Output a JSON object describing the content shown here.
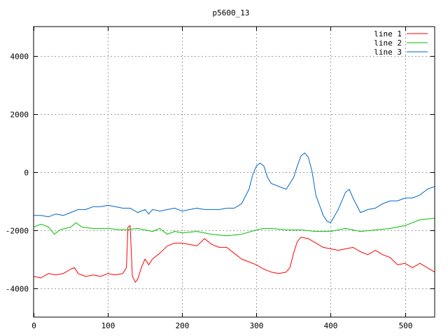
{
  "chart_data": {
    "type": "line",
    "title": "p5600_13",
    "xlabel": "",
    "ylabel": "",
    "xlim": [
      0,
      540
    ],
    "ylim": [
      -5000,
      5000
    ],
    "x_ticks": [
      0,
      100,
      200,
      300,
      400,
      500
    ],
    "y_ticks": [
      -4000,
      -2000,
      0,
      2000,
      4000
    ],
    "grid": true,
    "legend_position": "top-right",
    "series": [
      {
        "name": "line 1",
        "color": "#ff0000",
        "x": [
          0,
          10,
          20,
          30,
          40,
          50,
          55,
          60,
          70,
          80,
          90,
          100,
          110,
          120,
          125,
          127,
          130,
          133,
          137,
          140,
          145,
          150,
          155,
          160,
          170,
          180,
          190,
          200,
          210,
          220,
          230,
          240,
          250,
          260,
          270,
          280,
          290,
          300,
          310,
          320,
          330,
          340,
          345,
          350,
          355,
          360,
          370,
          380,
          390,
          400,
          410,
          420,
          430,
          440,
          450,
          460,
          470,
          480,
          490,
          500,
          510,
          520,
          530,
          540
        ],
        "y": [
          -3600,
          -3650,
          -3500,
          -3550,
          -3500,
          -3350,
          -3300,
          -3500,
          -3600,
          -3550,
          -3600,
          -3500,
          -3550,
          -3500,
          -3300,
          -1900,
          -1850,
          -3600,
          -3800,
          -3700,
          -3300,
          -3000,
          -3200,
          -3000,
          -2800,
          -2550,
          -2450,
          -2450,
          -2500,
          -2550,
          -2300,
          -2500,
          -2600,
          -2600,
          -2800,
          -3000,
          -3100,
          -3200,
          -3350,
          -3450,
          -3500,
          -3450,
          -3300,
          -2800,
          -2400,
          -2250,
          -2300,
          -2450,
          -2600,
          -2650,
          -2700,
          -2650,
          -2600,
          -2750,
          -2850,
          -2700,
          -2850,
          -2950,
          -3200,
          -3150,
          -3300,
          -3150,
          -3300,
          -3450
        ]
      },
      {
        "name": "line 2",
        "color": "#00c000",
        "x": [
          0,
          10,
          20,
          28,
          35,
          50,
          57,
          65,
          80,
          100,
          120,
          140,
          160,
          170,
          180,
          190,
          200,
          220,
          240,
          260,
          280,
          300,
          310,
          320,
          340,
          360,
          380,
          400,
          420,
          440,
          460,
          480,
          500,
          520,
          540
        ],
        "y": [
          -1900,
          -1800,
          -1900,
          -2150,
          -2000,
          -1900,
          -1750,
          -1900,
          -1950,
          -1950,
          -2000,
          -1950,
          -2050,
          -1950,
          -2150,
          -2050,
          -2100,
          -2050,
          -2150,
          -2200,
          -2150,
          -2000,
          -1950,
          -1950,
          -2000,
          -2000,
          -2050,
          -2050,
          -1950,
          -2050,
          -2000,
          -1950,
          -1850,
          -1650,
          -1600
        ]
      },
      {
        "name": "line 3",
        "color": "#0066cc",
        "x": [
          0,
          10,
          20,
          30,
          40,
          50,
          60,
          70,
          80,
          90,
          100,
          110,
          120,
          130,
          140,
          150,
          155,
          160,
          170,
          180,
          190,
          200,
          210,
          220,
          230,
          240,
          250,
          260,
          270,
          280,
          290,
          295,
          300,
          305,
          310,
          315,
          320,
          330,
          340,
          345,
          350,
          355,
          360,
          365,
          370,
          375,
          380,
          390,
          395,
          400,
          410,
          420,
          425,
          430,
          440,
          450,
          460,
          470,
          480,
          490,
          500,
          510,
          520,
          530,
          540
        ],
        "y": [
          -1500,
          -1500,
          -1550,
          -1450,
          -1500,
          -1400,
          -1300,
          -1300,
          -1200,
          -1200,
          -1150,
          -1200,
          -1250,
          -1250,
          -1400,
          -1300,
          -1450,
          -1300,
          -1350,
          -1300,
          -1250,
          -1350,
          -1300,
          -1250,
          -1300,
          -1300,
          -1300,
          -1250,
          -1250,
          -1100,
          -600,
          -100,
          200,
          300,
          200,
          -200,
          -400,
          -500,
          -600,
          -400,
          -200,
          200,
          550,
          650,
          500,
          0,
          -800,
          -1500,
          -1700,
          -1750,
          -1300,
          -700,
          -600,
          -900,
          -1400,
          -1300,
          -1250,
          -1100,
          -1000,
          -1000,
          -900,
          -900,
          -800,
          -600,
          -500
        ]
      }
    ]
  }
}
